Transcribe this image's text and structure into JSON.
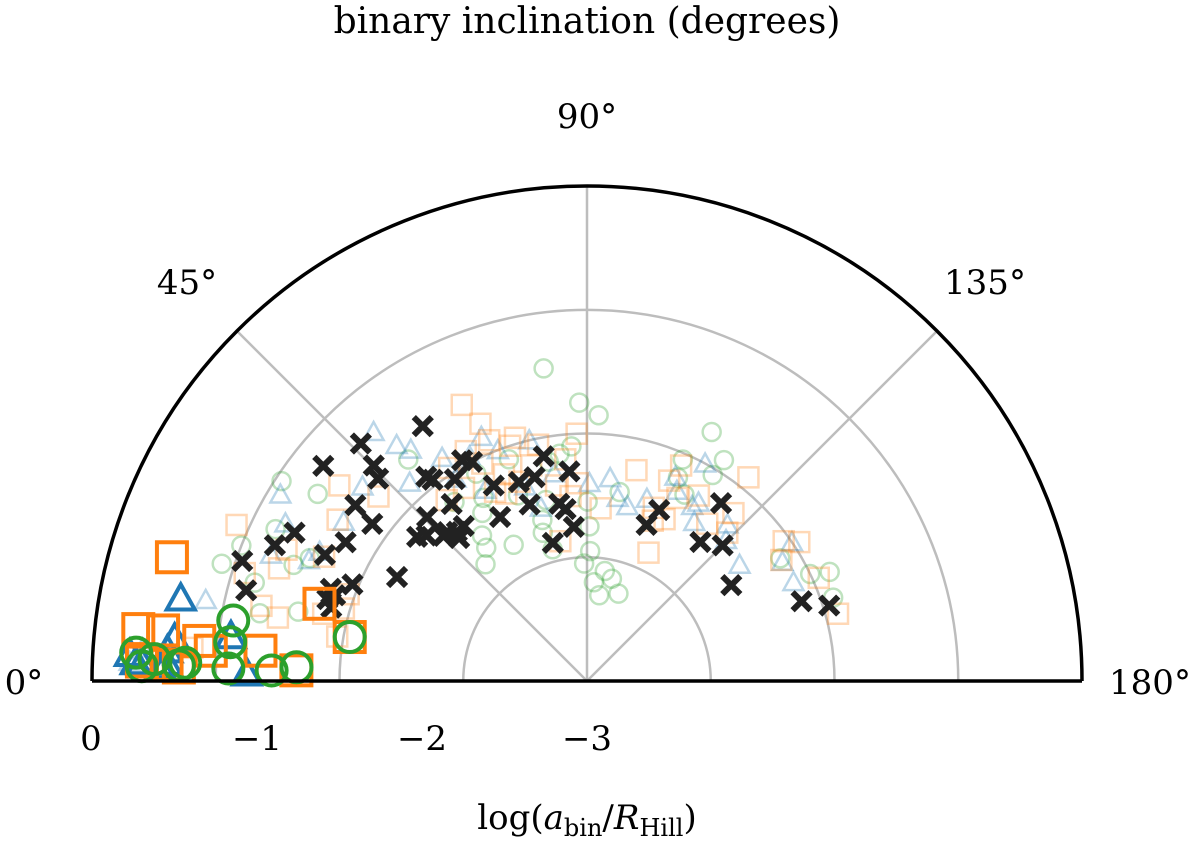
{
  "chart_data": {
    "type": "polar-scatter",
    "title": "binary inclination (degrees)",
    "xlabel_parts": {
      "prefix": "log(",
      "a": "a",
      "a_sub": "bin",
      "slash": "/",
      "R": "R",
      "R_sub": "Hill",
      "suffix": ")"
    },
    "angular_ticks": [
      "0°",
      "45°",
      "90°",
      "135°",
      "180°"
    ],
    "angular_tick_values": [
      0,
      45,
      90,
      135,
      180
    ],
    "radial_ticks": [
      "0",
      "−1",
      "−2",
      "−3"
    ],
    "radial_tick_values": [
      0,
      -1,
      -2,
      -3
    ],
    "radial_range": [
      -4,
      0
    ],
    "angle_range_deg": [
      0,
      180
    ],
    "colors": {
      "blue": "#1f77b4",
      "orange": "#ff7f0e",
      "green": "#2ca02c",
      "black": "#222222",
      "grid": "#bdbdbd"
    },
    "series": [
      {
        "name": "faint green circles",
        "marker": "circle",
        "color": "green",
        "opacity": 0.3,
        "points": [
          [
            -2.1,
            70.6
          ],
          [
            -2.4,
            69.6
          ],
          [
            -2.65,
            74.5
          ],
          [
            -2.75,
            73.4
          ],
          [
            -2.3,
            60.5
          ],
          [
            -2.75,
            61.7
          ],
          [
            -1.7,
            51.1
          ],
          [
            -2.5,
            77.2
          ],
          [
            -2.65,
            52.9
          ],
          [
            -2.9,
            75.4
          ],
          [
            -2.4,
            58.1
          ],
          [
            -2.1,
            61.9
          ],
          [
            -2.75,
            49.0
          ],
          [
            -2.55,
            54.2
          ],
          [
            -2.95,
            91.4
          ],
          [
            -3.05,
            88.6
          ],
          [
            -2.55,
            90.2
          ],
          [
            -2.75,
            90.9
          ],
          [
            -3.3,
            98.1
          ],
          [
            -2.05,
            113.4
          ],
          [
            -2.2,
            114.1
          ],
          [
            -2.3,
            117.6
          ],
          [
            -1.9,
            121.8
          ],
          [
            -2.05,
            121.4
          ],
          [
            -1.75,
            116.6
          ],
          [
            -2.0,
            154.4
          ],
          [
            -1.85,
            155.8
          ],
          [
            -1.9,
            161.3
          ],
          [
            -2.15,
            147.6
          ],
          [
            -1.35,
            34.8
          ],
          [
            -1.05,
            33.2
          ],
          [
            -1.55,
            23.9
          ],
          [
            -1.45,
            21.6
          ],
          [
            -1.2,
            26.0
          ],
          [
            -1.2,
            16.5
          ],
          [
            -1.0,
            21.4
          ],
          [
            -0.9,
            17.8
          ],
          [
            -1.6,
            13.5
          ],
          [
            -1.3,
            11.7
          ],
          [
            -2.45,
            99.8
          ],
          [
            -3.1,
            99.2
          ],
          [
            -3.25,
            109.8
          ],
          [
            -3.15,
            103.7
          ],
          [
            -3.2,
            94.0
          ],
          [
            -2.2,
            53.5
          ],
          [
            -1.45,
            82.1
          ],
          [
            -1.75,
            88.4
          ],
          [
            -1.85,
            92.5
          ],
          [
            -2.1,
            86.2
          ],
          [
            -2.2,
            80.1
          ],
          [
            -2.15,
            83.1
          ]
        ]
      },
      {
        "name": "faint blue triangles",
        "marker": "triangle",
        "color": "blue",
        "opacity": 0.3,
        "points": [
          [
            -2.25,
            62.0
          ],
          [
            -2.35,
            72.4
          ],
          [
            -2.0,
            76.5
          ],
          [
            -2.5,
            99.5
          ],
          [
            -2.55,
            103.0
          ],
          [
            -2.45,
            108.2
          ],
          [
            -2.55,
            75.1
          ],
          [
            -2.3,
            115.3
          ],
          [
            -2.45,
            124.0
          ],
          [
            -2.3,
            122.0
          ],
          [
            -1.65,
            33.2
          ],
          [
            -1.25,
            27.6
          ],
          [
            -1.65,
            52.7
          ],
          [
            -1.55,
            23.5
          ],
          [
            -2.15,
            148.6
          ],
          [
            -2.15,
            154.4
          ],
          [
            -2.3,
            131.9
          ],
          [
            -2.0,
            145.9
          ],
          [
            -2.45,
            142.7
          ],
          [
            -2.4,
            134.6
          ],
          [
            -2.05,
            57.0
          ],
          [
            -1.55,
            51.1
          ],
          [
            -1.1,
            31.3
          ],
          [
            -1.6,
            25.8
          ],
          [
            -1.85,
            57.0
          ],
          [
            -1.95,
            62.4
          ],
          [
            -2.0,
            68.9
          ],
          [
            -1.85,
            66.6
          ],
          [
            -2.4,
            90.7
          ],
          [
            -2.2,
            113.4
          ],
          [
            -2.35,
            121.0
          ],
          [
            -2.0,
            118.5
          ],
          [
            -2.3,
            81.0
          ],
          [
            -2.35,
            96.5
          ],
          [
            -1.85,
            48.2
          ],
          [
            -1.6,
            40.9
          ],
          [
            -1.35,
            49.4
          ],
          [
            -1.25,
            21.8
          ],
          [
            -0.85,
            12.0
          ],
          [
            -0.55,
            1.3
          ],
          [
            -0.4,
            4.2
          ],
          [
            -0.3,
            2.4
          ]
        ]
      },
      {
        "name": "faint orange squares",
        "marker": "square",
        "color": "orange",
        "opacity": 0.3,
        "points": [
          [
            -2.05,
            64.3
          ],
          [
            -2.35,
            66.7
          ],
          [
            -1.9,
            62.2
          ],
          [
            -1.95,
            57.1
          ],
          [
            -2.15,
            57.5
          ],
          [
            -2.15,
            52.2
          ],
          [
            -2.3,
            64.1
          ],
          [
            -2.2,
            68.1
          ],
          [
            -2.5,
            84.9
          ],
          [
            -2.4,
            87.3
          ],
          [
            -2.4,
            81.0
          ],
          [
            -2.6,
            94.5
          ],
          [
            -2.6,
            112.3
          ],
          [
            -2.25,
            121.1
          ],
          [
            -2.35,
            116.3
          ],
          [
            -2.55,
            115.6
          ],
          [
            -2.5,
            111.1
          ],
          [
            -2.2,
            131.1
          ],
          [
            -2.05,
            144.6
          ],
          [
            -2.15,
            148.1
          ],
          [
            -1.95,
            156.0
          ],
          [
            -1.95,
            146.8
          ],
          [
            -1.9,
            165.0
          ],
          [
            -1.6,
            32.9
          ],
          [
            -1.35,
            23.6
          ],
          [
            -1.35,
            20.1
          ],
          [
            -1.1,
            17.5
          ],
          [
            -0.9,
            24.0
          ],
          [
            -1.75,
            41.5
          ],
          [
            -2.05,
            78.3
          ],
          [
            -2.3,
            71.3
          ],
          [
            -2.85,
            79.2
          ],
          [
            -1.95,
            73.5
          ],
          [
            -2.2,
            75.5
          ],
          [
            -1.45,
            38.3
          ],
          [
            -2.25,
            103.2
          ],
          [
            -1.3,
            13.0
          ],
          [
            -0.8,
            4.8
          ],
          [
            -2.85,
            115.6
          ],
          [
            -1.55,
            65.6
          ],
          [
            -2.0,
            71.9
          ],
          [
            -1.75,
            67.5
          ],
          [
            -1.9,
            67.9
          ],
          [
            -2.0,
            87.6
          ],
          [
            -1.95,
            16.6
          ],
          [
            -1.45,
            11.6
          ],
          [
            -1.65,
            25.3
          ],
          [
            -2.2,
            84.4
          ],
          [
            -2.25,
            112.3
          ],
          [
            -2.35,
            133.4
          ],
          [
            -2.4,
            127.4
          ],
          [
            -2.1,
            113.6
          ],
          [
            -1.9,
            128.4
          ],
          [
            -1.8,
            14.3
          ],
          [
            -1.95,
            10.1
          ],
          [
            -1.95,
            20.0
          ]
        ]
      },
      {
        "name": "black crosses",
        "marker": "cross",
        "color": "black",
        "opacity": 1.0,
        "points": [
          [
            -1.85,
            16.0
          ],
          [
            -1.25,
            39.2
          ],
          [
            -1.35,
            26.9
          ],
          [
            -1.15,
            14.9
          ],
          [
            -1.35,
            46.4
          ],
          [
            -1.55,
            45.3
          ],
          [
            -1.65,
            44.1
          ],
          [
            -1.65,
            37.2
          ],
          [
            -1.95,
            22.4
          ],
          [
            -2.0,
            62.3
          ],
          [
            -2.05,
            56.8
          ],
          [
            -1.95,
            60.5
          ],
          [
            -1.9,
            51.8
          ],
          [
            -1.65,
            25.7
          ],
          [
            -1.8,
            17.5
          ],
          [
            -1.85,
            18.8
          ],
          [
            -1.8,
            19.8
          ],
          [
            -1.25,
            23.5
          ],
          [
            -1.05,
            19.2
          ],
          [
            -1.55,
            57.2
          ],
          [
            -1.85,
            36.2
          ],
          [
            -2.2,
            40.3
          ],
          [
            -2.15,
            45.7
          ],
          [
            -2.35,
            46.8
          ],
          [
            -1.95,
            52.5
          ],
          [
            -2.25,
            64.5
          ],
          [
            -2.35,
            45.3
          ],
          [
            -2.4,
            48.9
          ],
          [
            -2.4,
            51.5
          ],
          [
            -2.25,
            28.7
          ],
          [
            -2.25,
            42.2
          ],
          [
            -2.3,
            71.1
          ],
          [
            -2.5,
            62.1
          ],
          [
            -2.5,
            72.0
          ],
          [
            -2.85,
            76.1
          ],
          [
            -2.45,
            48.2
          ],
          [
            -1.75,
            29.9
          ],
          [
            -2.2,
            52.6
          ],
          [
            -2.75,
            85.1
          ],
          [
            -2.55,
            81.1
          ],
          [
            -2.3,
            85.2
          ],
          [
            -2.3,
            75.6
          ],
          [
            -2.15,
            79.1
          ],
          [
            -2.6,
            82.9
          ],
          [
            -2.65,
            110.9
          ],
          [
            -2.5,
            112.9
          ],
          [
            -2.2,
            127.0
          ],
          [
            -2.45,
            135.0
          ],
          [
            -2.15,
            159.6
          ],
          [
            -1.95,
            162.7
          ],
          [
            -2.55,
            129.2
          ],
          [
            -2.6,
            146.4
          ]
        ]
      },
      {
        "name": "bold blue triangles",
        "marker": "triangle",
        "color": "blue",
        "opacity": 1.0,
        "points": [
          [
            -0.65,
            11.5
          ],
          [
            -0.6,
            4.2
          ],
          [
            -0.4,
            2.4
          ],
          [
            -0.3,
            3.4
          ],
          [
            -0.35,
            2.4
          ],
          [
            -1.1,
            7.2
          ],
          [
            -1.25,
            1.3
          ],
          [
            -0.55,
            1.9
          ],
          [
            -0.6,
            2.5
          ],
          [
            -0.65,
            5.9
          ]
        ]
      },
      {
        "name": "bold orange squares",
        "marker": "square",
        "color": "orange",
        "opacity": 1.0,
        "points": [
          [
            -0.5,
            16.6
          ],
          [
            -0.4,
            2.5
          ],
          [
            -0.35,
            6.6
          ],
          [
            -0.6,
            2.2
          ],
          [
            -0.7,
            1.9
          ],
          [
            -0.85,
            5.9
          ],
          [
            -1.35,
            5.3
          ],
          [
            -1.65,
            2.1
          ],
          [
            -1.75,
            16.1
          ],
          [
            -2.05,
            10.5
          ],
          [
            -0.95,
            4.6
          ],
          [
            -0.55,
            6.8
          ]
        ]
      },
      {
        "name": "bold green circles",
        "marker": "circle",
        "color": "green",
        "opacity": 1.0,
        "points": [
          [
            -0.35,
            3.6
          ],
          [
            -0.4,
            1.9
          ],
          [
            -0.5,
            2.9
          ],
          [
            -0.7,
            2.2
          ],
          [
            -1.1,
            2.0
          ],
          [
            -1.45,
            1.9
          ],
          [
            -1.65,
            2.7
          ],
          [
            -1.1,
            6.2
          ],
          [
            -1.1,
            9.7
          ],
          [
            -2.05,
            10.5
          ],
          [
            -0.75,
            2.6
          ]
        ]
      }
    ]
  }
}
